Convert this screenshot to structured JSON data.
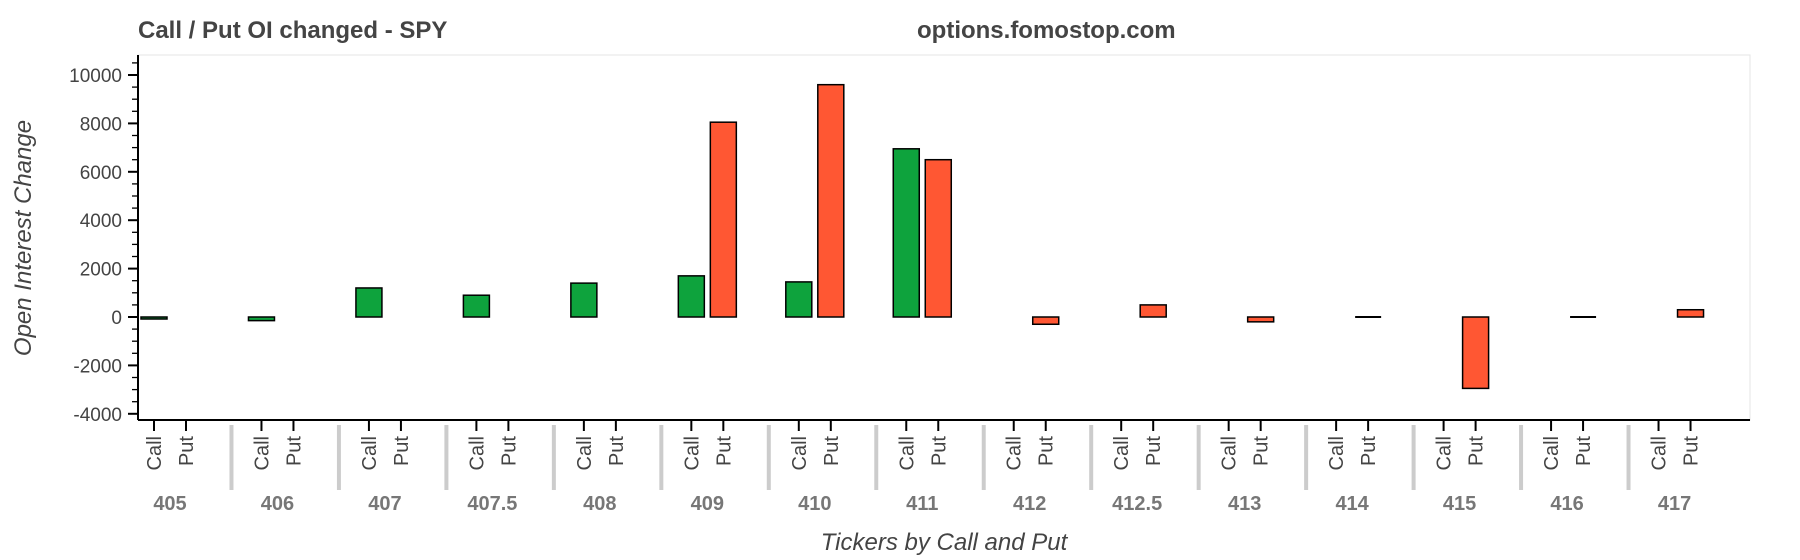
{
  "header": {
    "title": "Call / Put OI changed - SPY",
    "source": "options.fomostop.com"
  },
  "chart_data": {
    "type": "bar",
    "title": "Call / Put OI changed - SPY",
    "xlabel": "Tickers by Call and Put",
    "ylabel": "Open Interest Change",
    "ylim": [
      -4000,
      11000
    ],
    "yticks": [
      -4000,
      -2000,
      0,
      2000,
      4000,
      6000,
      8000,
      10000
    ],
    "categories": [
      "405",
      "406",
      "407",
      "407.5",
      "408",
      "409",
      "410",
      "411",
      "412",
      "412.5",
      "413",
      "414",
      "415",
      "416",
      "417"
    ],
    "subcategories": [
      "Call",
      "Put"
    ],
    "series": [
      {
        "name": "Call",
        "color": "#0ea33d",
        "values": [
          -50,
          -150,
          1200,
          900,
          1400,
          1700,
          1450,
          6950,
          0,
          0,
          0,
          0,
          0,
          0,
          0
        ]
      },
      {
        "name": "Put",
        "color": "#ff5733",
        "values": [
          0,
          0,
          0,
          0,
          0,
          8050,
          9600,
          6500,
          -300,
          500,
          -200,
          0,
          -2950,
          0,
          300
        ]
      }
    ],
    "grid": false,
    "legend": "none"
  }
}
